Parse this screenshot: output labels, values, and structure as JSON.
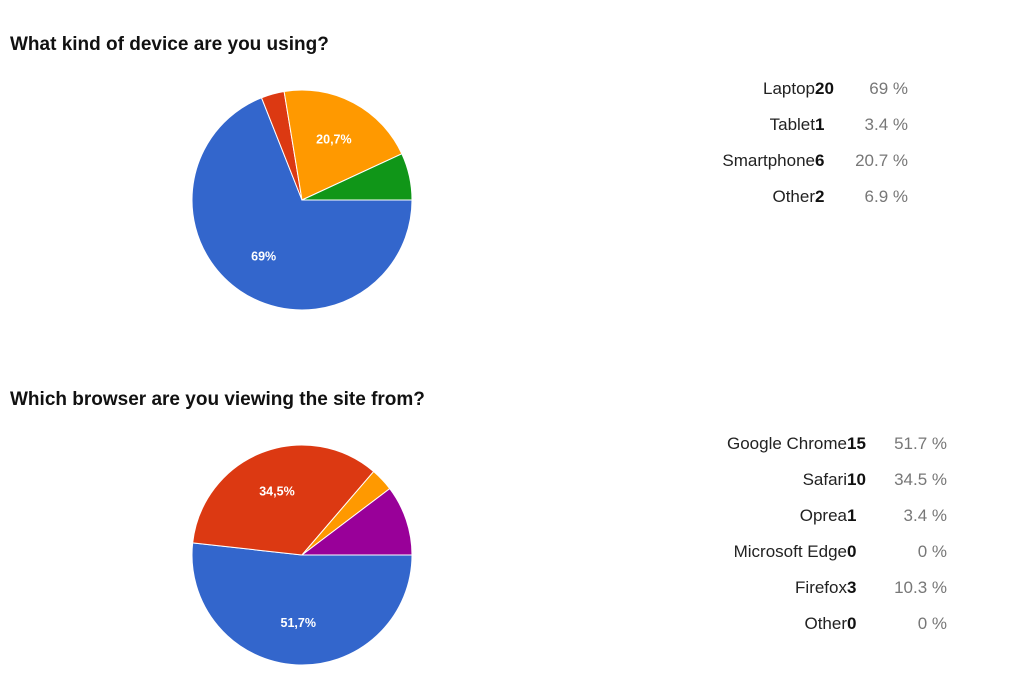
{
  "chart_data": [
    {
      "type": "pie",
      "title": "What kind of device are you using?",
      "slices": [
        {
          "label": "Laptop",
          "count": 20,
          "percent_text": "69 %",
          "value": 69.0,
          "color": "#3366cc",
          "slice_label": "69%"
        },
        {
          "label": "Tablet",
          "count": 1,
          "percent_text": "3.4 %",
          "value": 3.4,
          "color": "#dc3912",
          "slice_label": ""
        },
        {
          "label": "Smartphone",
          "count": 6,
          "percent_text": "20.7 %",
          "value": 20.7,
          "color": "#ff9900",
          "slice_label": "20,7%"
        },
        {
          "label": "Other",
          "count": 2,
          "percent_text": "6.9 %",
          "value": 6.9,
          "color": "#109618",
          "slice_label": ""
        }
      ]
    },
    {
      "type": "pie",
      "title": "Which browser are you viewing the site from?",
      "slices": [
        {
          "label": "Google Chrome",
          "count": 15,
          "percent_text": "51.7 %",
          "value": 51.7,
          "color": "#3366cc",
          "slice_label": "51,7%"
        },
        {
          "label": "Safari",
          "count": 10,
          "percent_text": "34.5 %",
          "value": 34.5,
          "color": "#dc3912",
          "slice_label": "34,5%"
        },
        {
          "label": "Oprea",
          "count": 1,
          "percent_text": "3.4 %",
          "value": 3.4,
          "color": "#ff9900",
          "slice_label": ""
        },
        {
          "label": "Microsoft Edge",
          "count": 0,
          "percent_text": "0 %",
          "value": 0,
          "color": "#109618",
          "slice_label": ""
        },
        {
          "label": "Firefox",
          "count": 3,
          "percent_text": "10.3 %",
          "value": 10.3,
          "color": "#990099",
          "slice_label": ""
        },
        {
          "label": "Other",
          "count": 0,
          "percent_text": "0 %",
          "value": 0,
          "color": "#0099c6",
          "slice_label": ""
        }
      ]
    }
  ]
}
